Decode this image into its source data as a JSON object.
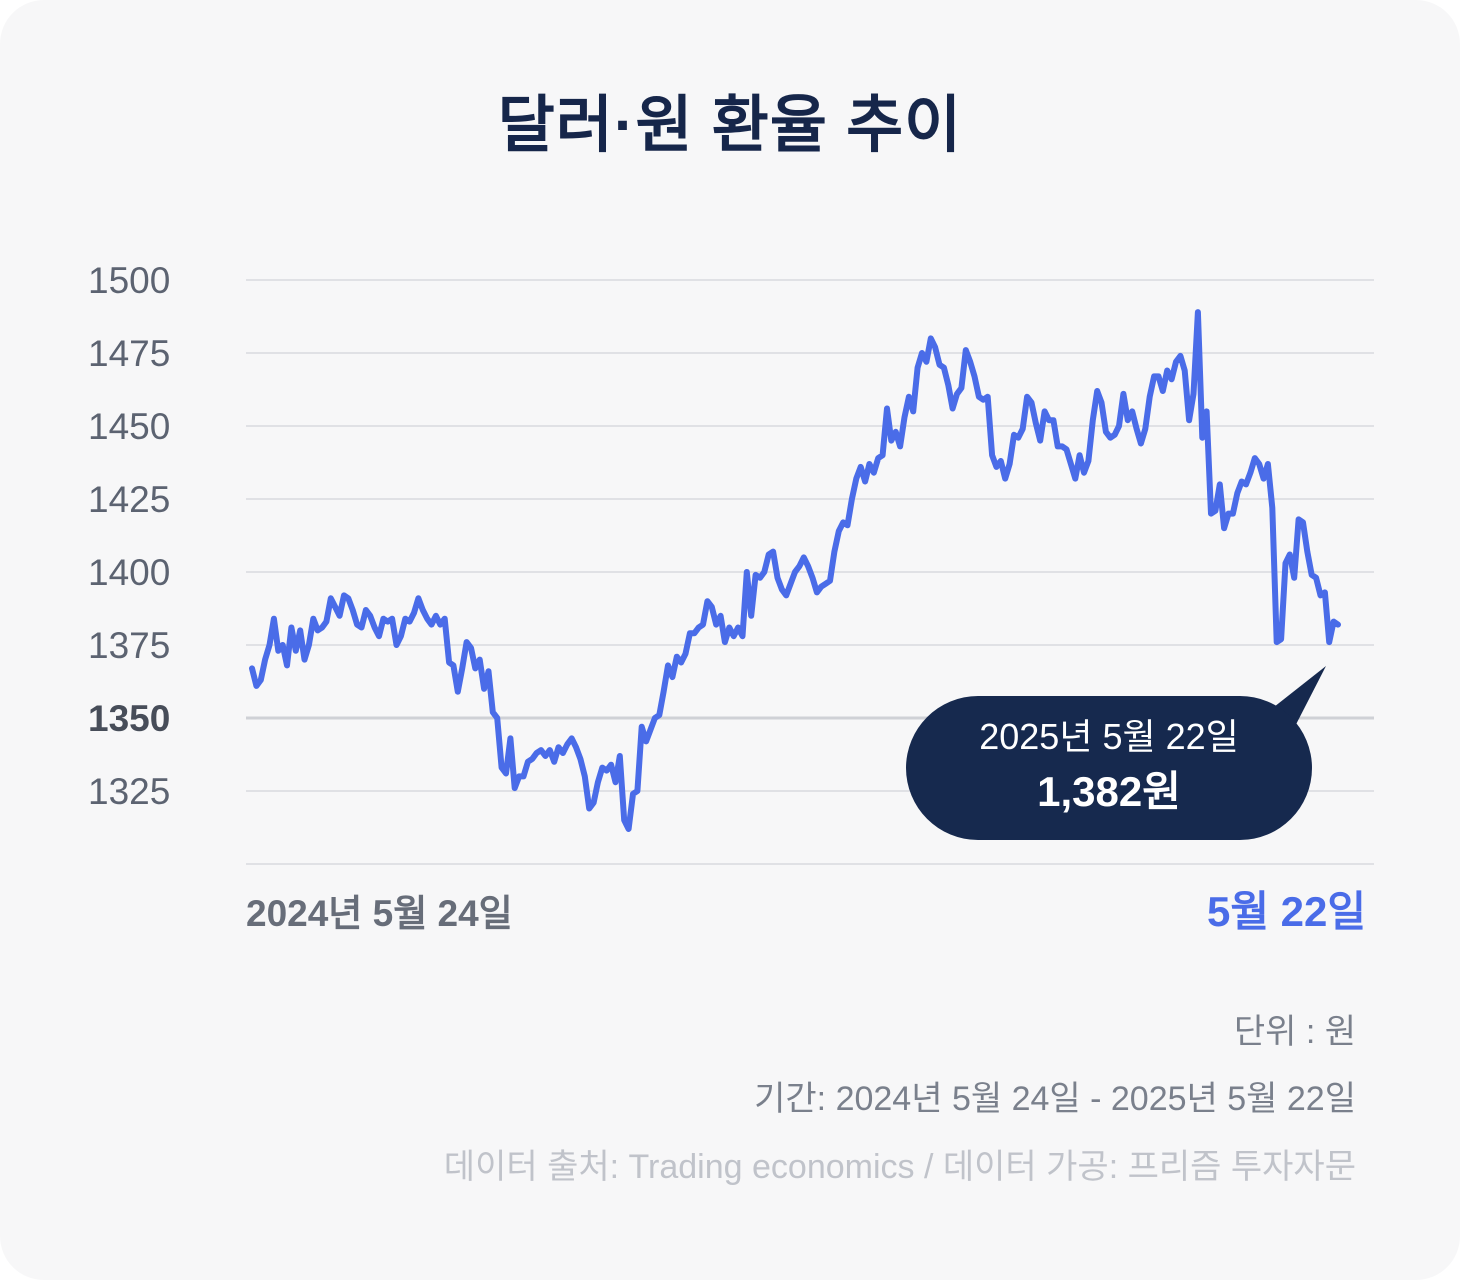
{
  "title": "달러·원 환율 추이",
  "y_tick_labels": [
    "1500",
    "1475",
    "1450",
    "1425",
    "1400",
    "1375",
    "1350",
    "1325"
  ],
  "x_start_label": "2024년 5월 24일",
  "x_end_label": "5월 22일",
  "callout": {
    "date": "2025년 5월 22일",
    "value": "1,382원"
  },
  "footer": {
    "unit": "단위 : 원",
    "period": "기간: 2024년 5월 24일 - 2025년 5월 22일",
    "source": "데이터 출처: Trading economics / 데이터 가공: 프리즘 투자자문"
  },
  "colors": {
    "line": "#4a6ce8",
    "title": "#16264a",
    "callout_bg": "#16294e",
    "grid": "#e0e1e5",
    "baseline": "#cfd1d6",
    "card_bg": "#f7f7f8"
  },
  "chart_data": {
    "type": "line",
    "title": "달러·원 환율 추이",
    "xlabel": "",
    "ylabel": "",
    "unit": "원",
    "x_range": [
      "2024-05-24",
      "2025-05-22"
    ],
    "ylim": [
      1300,
      1500
    ],
    "y_ticks": [
      1325,
      1350,
      1375,
      1400,
      1425,
      1450,
      1475,
      1500
    ],
    "baseline": 1350,
    "grid": true,
    "series": [
      {
        "values": [
          1367,
          1361,
          1363,
          1370,
          1375,
          1384,
          1373,
          1375,
          1368,
          1381,
          1373,
          1380,
          1370,
          1375,
          1384,
          1380,
          1381,
          1383,
          1391,
          1388,
          1385,
          1392,
          1391,
          1387,
          1382,
          1381,
          1387,
          1385,
          1381,
          1378,
          1384,
          1383,
          1384,
          1375,
          1378,
          1384,
          1383,
          1386,
          1391,
          1387,
          1384,
          1382,
          1385,
          1382,
          1384,
          1369,
          1368,
          1359,
          1367,
          1376,
          1374,
          1367,
          1370,
          1360,
          1366,
          1352,
          1350,
          1333,
          1331,
          1343,
          1326,
          1330,
          1330,
          1335,
          1336,
          1338,
          1339,
          1337,
          1339,
          1335,
          1340,
          1338,
          1341,
          1343,
          1340,
          1336,
          1330,
          1319,
          1321,
          1328,
          1333,
          1332,
          1334,
          1328,
          1337,
          1315,
          1312,
          1324,
          1325,
          1347,
          1342,
          1346,
          1350,
          1351,
          1359,
          1368,
          1364,
          1371,
          1369,
          1372,
          1379,
          1379,
          1381,
          1382,
          1390,
          1388,
          1382,
          1385,
          1376,
          1381,
          1378,
          1381,
          1378,
          1400,
          1385,
          1399,
          1398,
          1400,
          1406,
          1407,
          1398,
          1394,
          1392,
          1396,
          1400,
          1402,
          1405,
          1402,
          1398,
          1393,
          1395,
          1396,
          1397,
          1407,
          1414,
          1417,
          1416,
          1425,
          1432,
          1436,
          1431,
          1437,
          1434,
          1439,
          1440,
          1456,
          1445,
          1448,
          1443,
          1453,
          1460,
          1455,
          1470,
          1475,
          1472,
          1480,
          1477,
          1471,
          1470,
          1464,
          1456,
          1461,
          1463,
          1476,
          1472,
          1467,
          1460,
          1459,
          1460,
          1440,
          1436,
          1438,
          1432,
          1437,
          1447,
          1446,
          1449,
          1460,
          1458,
          1451,
          1445,
          1455,
          1452,
          1452,
          1443,
          1443,
          1442,
          1437,
          1432,
          1440,
          1434,
          1438,
          1452,
          1462,
          1458,
          1448,
          1446,
          1447,
          1450,
          1461,
          1452,
          1455,
          1449,
          1444,
          1449,
          1460,
          1467,
          1467,
          1462,
          1469,
          1466,
          1472,
          1474,
          1469,
          1452,
          1461,
          1489,
          1446,
          1455,
          1420,
          1421,
          1430,
          1415,
          1420,
          1420,
          1427,
          1431,
          1430,
          1434,
          1439,
          1437,
          1432,
          1437,
          1422,
          1376,
          1377,
          1403,
          1406,
          1398,
          1418,
          1417,
          1407,
          1399,
          1398,
          1392,
          1393,
          1376,
          1383,
          1382
        ],
        "color": "#4a6ce8"
      }
    ]
  }
}
